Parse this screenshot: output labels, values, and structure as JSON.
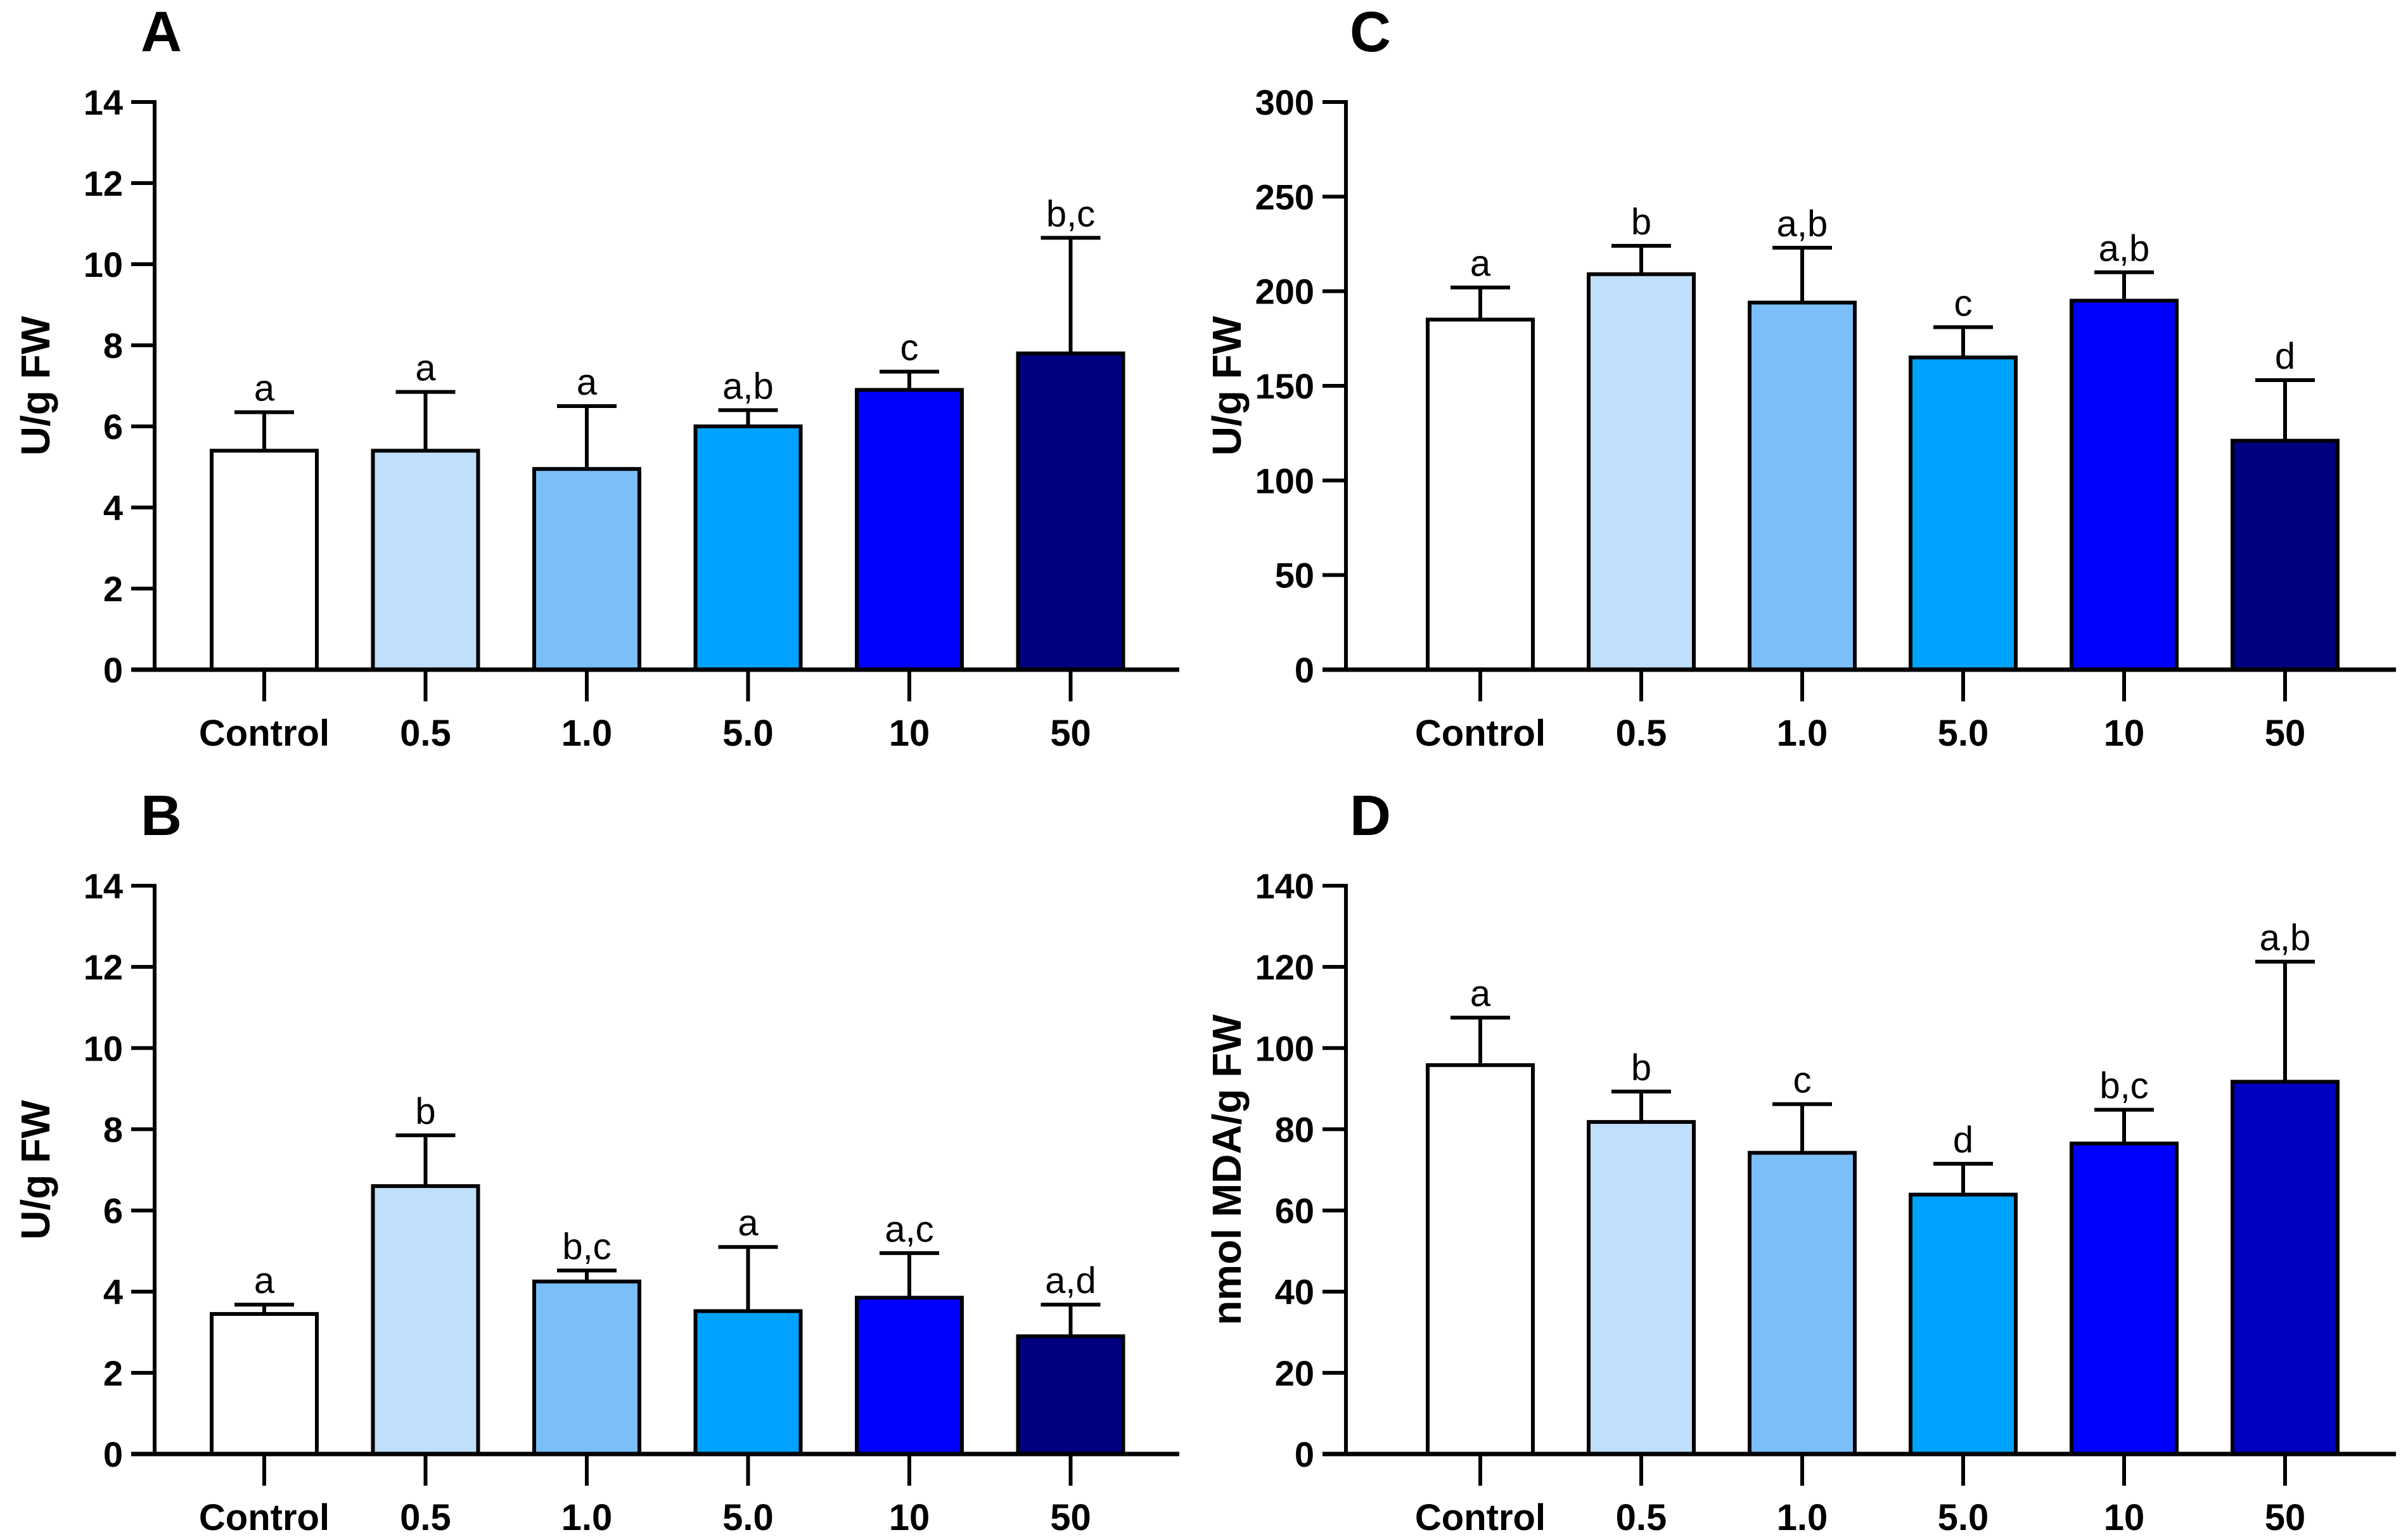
{
  "chart_data": [
    {
      "type": "bar",
      "panel": "A",
      "ylabel": "U/g FW",
      "ylim": [
        0,
        14
      ],
      "yticks": [
        0,
        2,
        4,
        6,
        8,
        10,
        12,
        14
      ],
      "categories": [
        "Control",
        "0.5",
        "1.0",
        "5.0",
        "10",
        "50"
      ],
      "values": [
        5.4,
        5.4,
        4.95,
        6.0,
        6.9,
        7.8
      ],
      "error_upper": [
        6.35,
        6.85,
        6.5,
        6.4,
        7.35,
        10.65
      ],
      "significance": [
        "a",
        "a",
        "a",
        "a,b",
        "c",
        "b,c"
      ],
      "colors": [
        "#ffffff",
        "#c0dffa",
        "#7bbffa",
        "#00a2ff",
        "#0000ff",
        "#000080"
      ]
    },
    {
      "type": "bar",
      "panel": "B",
      "ylabel": "U/g FW",
      "ylim": [
        0,
        14
      ],
      "yticks": [
        0,
        2,
        4,
        6,
        8,
        10,
        12,
        14
      ],
      "categories": [
        "Control",
        "0.5",
        "1.0",
        "5.0",
        "10",
        "50"
      ],
      "values": [
        3.45,
        6.6,
        4.25,
        3.52,
        3.85,
        2.9
      ],
      "error_upper": [
        3.68,
        7.85,
        4.52,
        5.1,
        4.95,
        3.68
      ],
      "significance": [
        "a",
        "b",
        "b,c",
        "a",
        "a,c",
        "a,d"
      ],
      "colors": [
        "#ffffff",
        "#c0dffa",
        "#7bbffa",
        "#00a2ff",
        "#0000ff",
        "#000080"
      ]
    },
    {
      "type": "bar",
      "panel": "C",
      "ylabel": "U/g FW",
      "ylim": [
        0,
        300
      ],
      "yticks": [
        0,
        50,
        100,
        150,
        200,
        250,
        300
      ],
      "categories": [
        "Control",
        "0.5",
        "1.0",
        "5.0",
        "10",
        "50"
      ],
      "values": [
        185,
        209,
        194,
        165,
        195,
        121
      ],
      "error_upper": [
        202,
        224,
        223,
        181,
        210,
        153
      ],
      "significance": [
        "a",
        "b",
        "a,b",
        "c",
        "a,b",
        "d"
      ],
      "colors": [
        "#ffffff",
        "#c0dffa",
        "#7bbffa",
        "#00a2ff",
        "#0000ff",
        "#000080"
      ]
    },
    {
      "type": "bar",
      "panel": "D",
      "ylabel": "nmol MDA/g FW",
      "ylim": [
        0,
        140
      ],
      "yticks": [
        0,
        20,
        40,
        60,
        80,
        100,
        120,
        140
      ],
      "categories": [
        "Control",
        "0.5",
        "1.0",
        "5.0",
        "10",
        "50"
      ],
      "values": [
        95.8,
        81.8,
        74.2,
        63.9,
        76.5,
        91.7
      ],
      "error_upper": [
        107.5,
        89.3,
        86.2,
        71.5,
        84.8,
        121.3
      ],
      "significance": [
        "a",
        "b",
        "c",
        "d",
        "b,c",
        "a,b"
      ],
      "colors": [
        "#ffffff",
        "#c0dffa",
        "#7bbffa",
        "#00a2ff",
        "#0000ff",
        "#0000c0"
      ]
    }
  ]
}
